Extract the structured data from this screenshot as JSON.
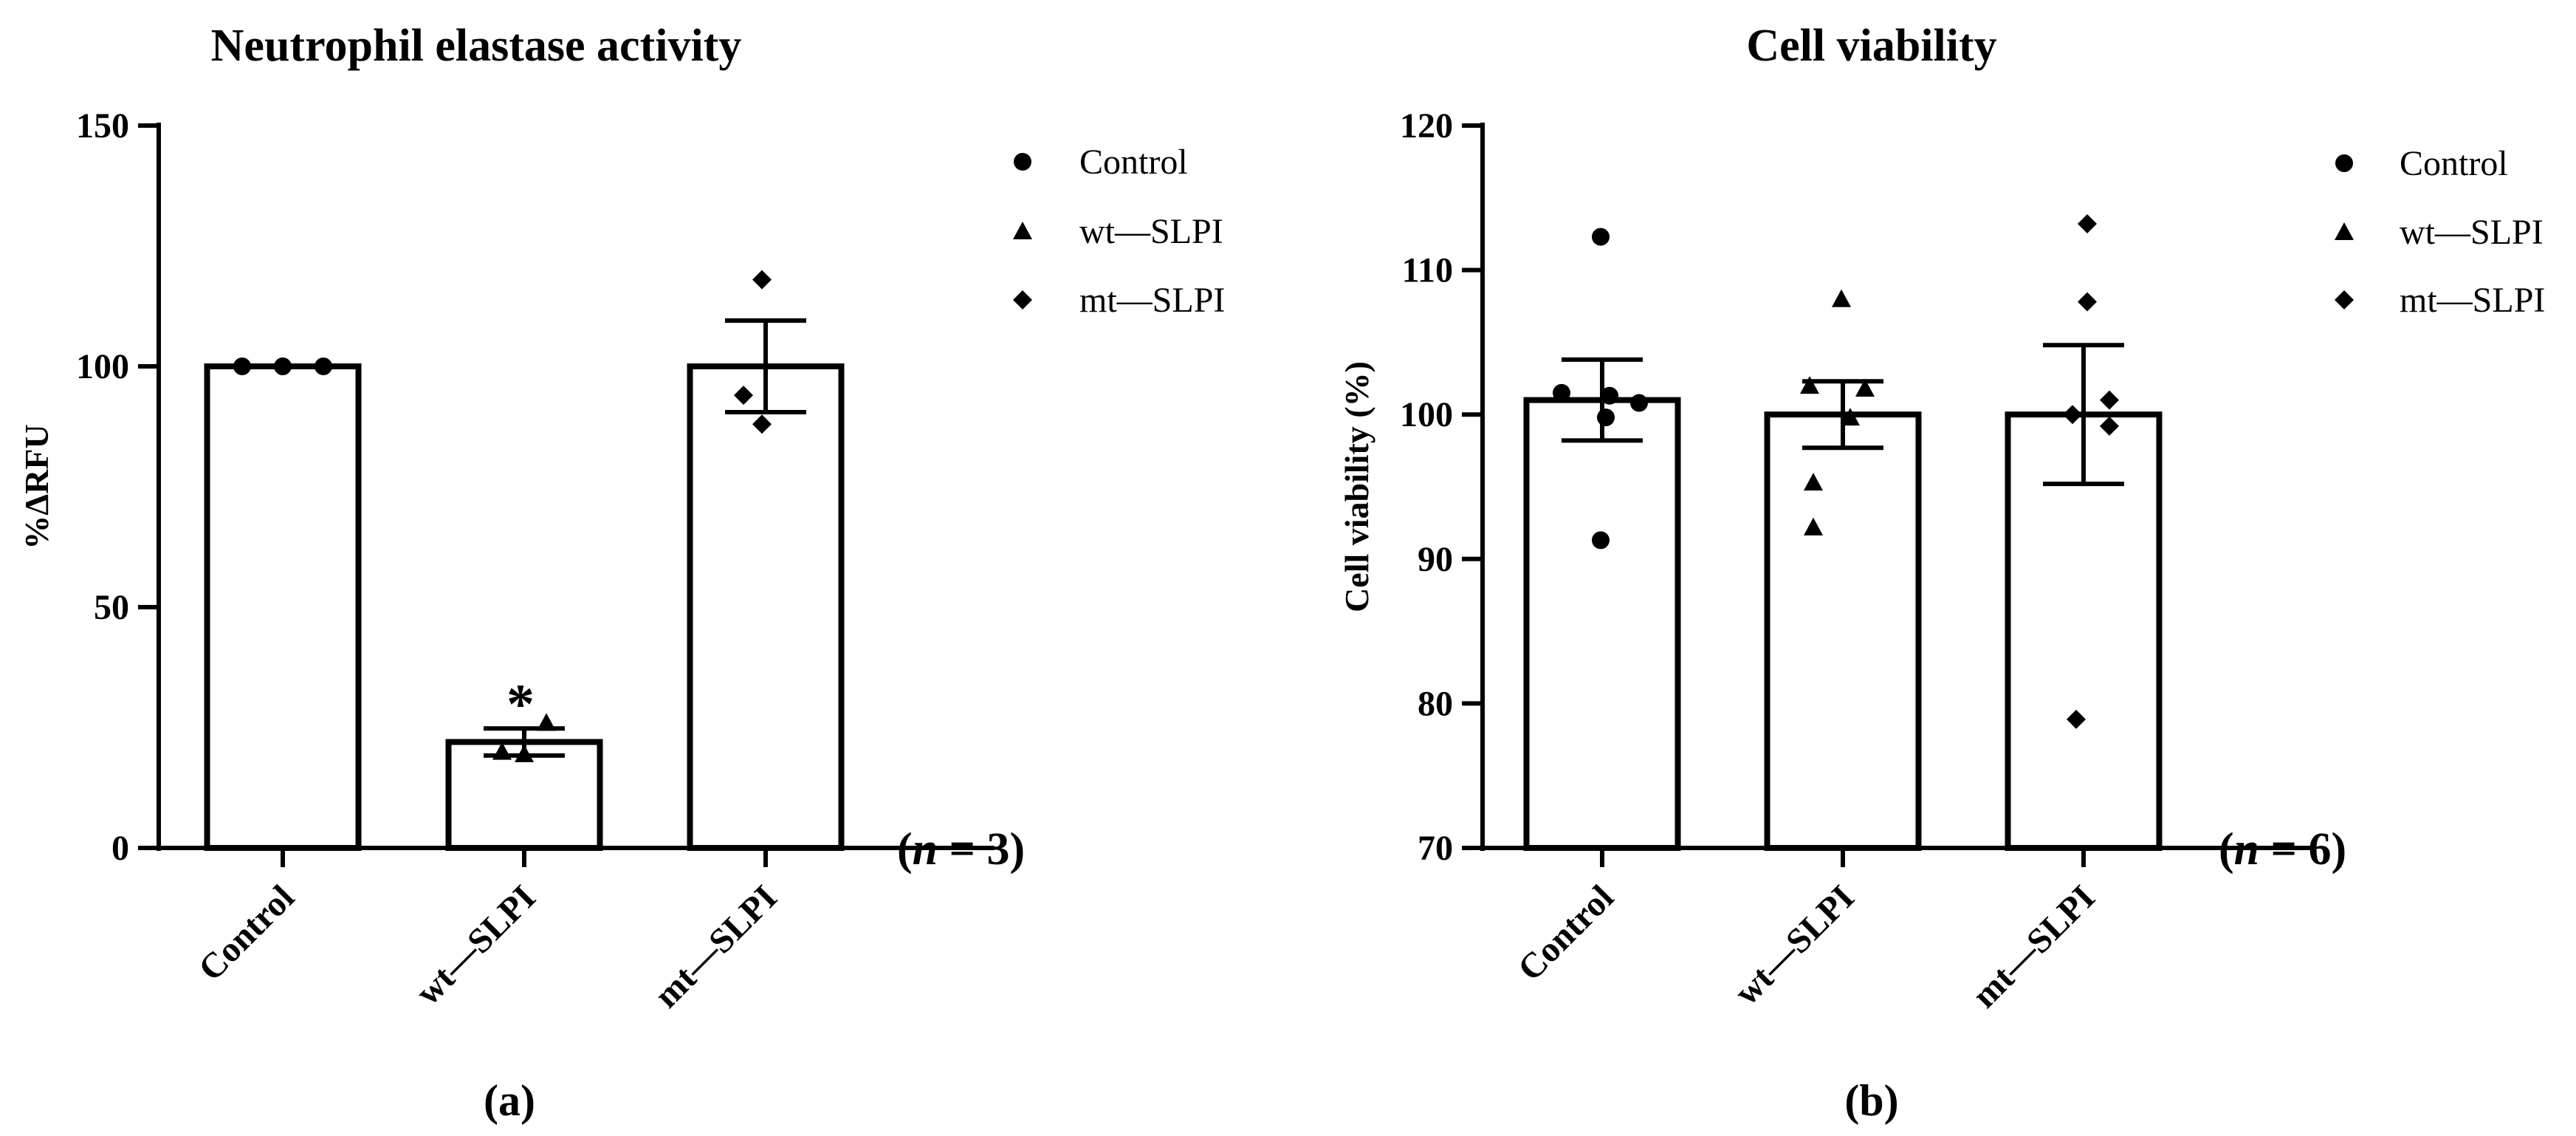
{
  "chart_data": [
    {
      "type": "bar",
      "title": "Neutrophil elastase activity",
      "ylabel": "%ΔRFU",
      "xlabel": "",
      "ylim": [
        0,
        150
      ],
      "yticks": [
        0,
        50,
        100,
        150
      ],
      "ytick_labels": [
        "0",
        "50",
        "100",
        "150"
      ],
      "categories": [
        "Control",
        "wt—SLPI",
        "mt—SLPI"
      ],
      "values": [
        100,
        22,
        100
      ],
      "sem": [
        0,
        2.8,
        9.5
      ],
      "points": [
        [
          100,
          100,
          100
        ],
        [
          19.5,
          20,
          26
        ],
        [
          118,
          94,
          88
        ]
      ],
      "markers": [
        "circle",
        "triangle",
        "diamond"
      ],
      "annotations": [
        "",
        "*",
        ""
      ],
      "n_label": "(n = 3)",
      "n_prefix": "(",
      "n_italic": "n",
      "n_suffix": " = 3)",
      "panel_label": "(a)",
      "legend": [
        "Control",
        "wt—SLPI",
        "mt—SLPI"
      ],
      "legend_position": "top-right"
    },
    {
      "type": "bar",
      "title": "Cell viability",
      "ylabel": "Cell viability (%)",
      "xlabel": "",
      "ylim": [
        70,
        120
      ],
      "yticks": [
        70,
        80,
        90,
        100,
        110,
        120
      ],
      "ytick_labels": [
        "70",
        "80",
        "90",
        "100",
        "110",
        "120"
      ],
      "categories": [
        "Control",
        "wt—SLPI",
        "mt—SLPI"
      ],
      "values": [
        101,
        100,
        100
      ],
      "sem": [
        2.8,
        2.3,
        4.8
      ],
      "points": [
        [
          112.3,
          101.5,
          100.8,
          101.3,
          99.8,
          91.3
        ],
        [
          108,
          102,
          101.8,
          99.8,
          95.3,
          92.2
        ],
        [
          113.2,
          107.8,
          101,
          100,
          99.2,
          78.9
        ]
      ],
      "markers": [
        "circle",
        "triangle",
        "diamond"
      ],
      "annotations": [
        "",
        "",
        ""
      ],
      "n_label": "(n = 6)",
      "n_prefix": "(",
      "n_italic": "n",
      "n_suffix": " = 6)",
      "panel_label": "(b)",
      "legend": [
        "Control",
        "wt—SLPI",
        "mt—SLPI"
      ],
      "legend_position": "top-right"
    }
  ]
}
